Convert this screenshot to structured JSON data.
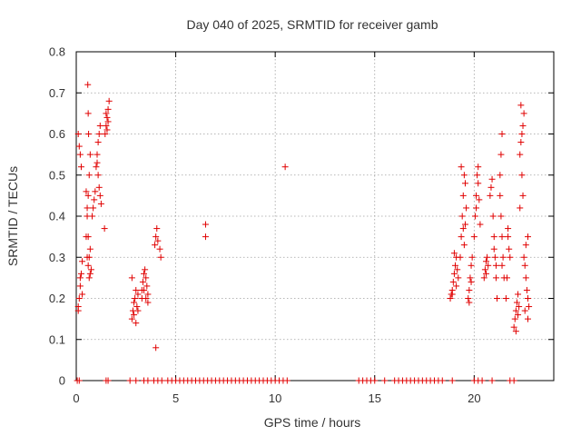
{
  "chart_data": {
    "type": "scatter",
    "title": "Day 040 of 2025, SRMTID for receiver gamb",
    "xlabel": "GPS time / hours",
    "ylabel": "SRMTID / TECUs",
    "xlim": [
      0,
      24
    ],
    "ylim": [
      0,
      0.8
    ],
    "xticks": [
      0,
      5,
      10,
      15,
      20
    ],
    "yticks": [
      0,
      0.1,
      0.2,
      0.3,
      0.4,
      0.5,
      0.6,
      0.7,
      0.8
    ],
    "xtick_labels": [
      "0",
      "5",
      "10",
      "15",
      "20"
    ],
    "ytick_labels": [
      "0",
      "0.1",
      "0.2",
      "0.3",
      "0.4",
      "0.5",
      "0.6",
      "0.7",
      "0.8"
    ],
    "grid": true,
    "marker": "+",
    "color": "#e00000",
    "series": [
      {
        "name": "SRMTID",
        "points": [
          [
            0.1,
            0.18
          ],
          [
            0.15,
            0.2
          ],
          [
            0.2,
            0.23
          ],
          [
            0.25,
            0.26
          ],
          [
            0.3,
            0.29
          ],
          [
            0.1,
            0.6
          ],
          [
            0.15,
            0.57
          ],
          [
            0.2,
            0.55
          ],
          [
            0.25,
            0.52
          ],
          [
            0.1,
            0.17
          ],
          [
            0.2,
            0.25
          ],
          [
            0.3,
            0.21
          ],
          [
            0.05,
            0.0
          ],
          [
            0.15,
            0.0
          ],
          [
            0.5,
            0.35
          ],
          [
            0.55,
            0.4
          ],
          [
            0.6,
            0.45
          ],
          [
            0.65,
            0.5
          ],
          [
            0.7,
            0.55
          ],
          [
            0.58,
            0.72
          ],
          [
            0.6,
            0.65
          ],
          [
            0.62,
            0.6
          ],
          [
            0.55,
            0.3
          ],
          [
            0.6,
            0.28
          ],
          [
            0.65,
            0.25
          ],
          [
            0.7,
            0.32
          ],
          [
            0.75,
            0.27
          ],
          [
            0.5,
            0.46
          ],
          [
            0.55,
            0.42
          ],
          [
            0.6,
            0.35
          ],
          [
            0.65,
            0.3
          ],
          [
            0.7,
            0.26
          ],
          [
            0.8,
            0.4
          ],
          [
            0.85,
            0.42
          ],
          [
            0.9,
            0.44
          ],
          [
            0.95,
            0.46
          ],
          [
            1.0,
            0.52
          ],
          [
            1.05,
            0.55
          ],
          [
            1.1,
            0.58
          ],
          [
            1.15,
            0.6
          ],
          [
            1.2,
            0.62
          ],
          [
            1.05,
            0.53
          ],
          [
            1.1,
            0.5
          ],
          [
            1.15,
            0.47
          ],
          [
            1.2,
            0.45
          ],
          [
            1.25,
            0.43
          ],
          [
            1.45,
            0.6
          ],
          [
            1.5,
            0.62
          ],
          [
            1.55,
            0.64
          ],
          [
            1.6,
            0.66
          ],
          [
            1.65,
            0.68
          ],
          [
            1.5,
            0.65
          ],
          [
            1.55,
            0.61
          ],
          [
            1.6,
            0.63
          ],
          [
            1.42,
            0.37
          ],
          [
            1.5,
            0.0
          ],
          [
            1.6,
            0.0
          ],
          [
            2.8,
            0.15
          ],
          [
            2.85,
            0.17
          ],
          [
            2.9,
            0.19
          ],
          [
            2.95,
            0.2
          ],
          [
            3.0,
            0.22
          ],
          [
            3.05,
            0.18
          ],
          [
            3.1,
            0.21
          ],
          [
            2.8,
            0.25
          ],
          [
            2.9,
            0.16
          ],
          [
            3.0,
            0.14
          ],
          [
            3.1,
            0.17
          ],
          [
            2.7,
            0.0
          ],
          [
            3.0,
            0.0
          ],
          [
            3.3,
            0.22
          ],
          [
            3.35,
            0.24
          ],
          [
            3.4,
            0.26
          ],
          [
            3.45,
            0.27
          ],
          [
            3.5,
            0.25
          ],
          [
            3.55,
            0.23
          ],
          [
            3.6,
            0.21
          ],
          [
            3.3,
            0.2
          ],
          [
            3.4,
            0.22
          ],
          [
            3.5,
            0.2
          ],
          [
            3.6,
            0.19
          ],
          [
            3.4,
            0.0
          ],
          [
            3.6,
            0.0
          ],
          [
            3.95,
            0.33
          ],
          [
            4.0,
            0.35
          ],
          [
            4.05,
            0.37
          ],
          [
            4.1,
            0.34
          ],
          [
            4.2,
            0.32
          ],
          [
            4.25,
            0.3
          ],
          [
            4.0,
            0.08
          ],
          [
            3.9,
            0.0
          ],
          [
            4.1,
            0.0
          ],
          [
            4.3,
            0.0
          ],
          [
            4.6,
            0.0
          ],
          [
            4.8,
            0.0
          ],
          [
            5.0,
            0.0
          ],
          [
            5.2,
            0.0
          ],
          [
            5.4,
            0.0
          ],
          [
            5.6,
            0.0
          ],
          [
            5.8,
            0.0
          ],
          [
            6.0,
            0.0
          ],
          [
            6.2,
            0.0
          ],
          [
            6.4,
            0.0
          ],
          [
            6.6,
            0.0
          ],
          [
            6.8,
            0.0
          ],
          [
            7.0,
            0.0
          ],
          [
            7.2,
            0.0
          ],
          [
            7.4,
            0.0
          ],
          [
            7.6,
            0.0
          ],
          [
            7.8,
            0.0
          ],
          [
            8.0,
            0.0
          ],
          [
            8.2,
            0.0
          ],
          [
            8.4,
            0.0
          ],
          [
            8.6,
            0.0
          ],
          [
            8.8,
            0.0
          ],
          [
            9.0,
            0.0
          ],
          [
            9.2,
            0.0
          ],
          [
            9.4,
            0.0
          ],
          [
            9.6,
            0.0
          ],
          [
            9.8,
            0.0
          ],
          [
            10.0,
            0.0
          ],
          [
            10.2,
            0.0
          ],
          [
            10.4,
            0.0
          ],
          [
            10.6,
            0.0
          ],
          [
            6.5,
            0.38
          ],
          [
            6.5,
            0.35
          ],
          [
            10.5,
            0.52
          ],
          [
            14.2,
            0.0
          ],
          [
            14.4,
            0.0
          ],
          [
            14.6,
            0.0
          ],
          [
            14.8,
            0.0
          ],
          [
            15.0,
            0.0
          ],
          [
            15.5,
            0.0
          ],
          [
            16.0,
            0.0
          ],
          [
            16.2,
            0.0
          ],
          [
            16.4,
            0.0
          ],
          [
            16.6,
            0.0
          ],
          [
            16.8,
            0.0
          ],
          [
            17.0,
            0.0
          ],
          [
            17.2,
            0.0
          ],
          [
            17.4,
            0.0
          ],
          [
            17.6,
            0.0
          ],
          [
            17.8,
            0.0
          ],
          [
            18.0,
            0.0
          ],
          [
            18.2,
            0.0
          ],
          [
            18.4,
            0.0
          ],
          [
            18.8,
            0.2
          ],
          [
            18.85,
            0.21
          ],
          [
            18.9,
            0.22
          ],
          [
            18.95,
            0.24
          ],
          [
            19.0,
            0.26
          ],
          [
            19.05,
            0.28
          ],
          [
            19.1,
            0.3
          ],
          [
            19.15,
            0.27
          ],
          [
            19.2,
            0.25
          ],
          [
            19.0,
            0.31
          ],
          [
            19.1,
            0.23
          ],
          [
            18.9,
            0.21
          ],
          [
            18.9,
            0.0
          ],
          [
            19.3,
            0.3
          ],
          [
            19.35,
            0.35
          ],
          [
            19.4,
            0.4
          ],
          [
            19.45,
            0.45
          ],
          [
            19.5,
            0.5
          ],
          [
            19.55,
            0.48
          ],
          [
            19.6,
            0.42
          ],
          [
            19.35,
            0.52
          ],
          [
            19.45,
            0.37
          ],
          [
            19.5,
            0.33
          ],
          [
            19.55,
            0.38
          ],
          [
            19.7,
            0.2
          ],
          [
            19.75,
            0.22
          ],
          [
            19.8,
            0.25
          ],
          [
            19.85,
            0.28
          ],
          [
            19.9,
            0.3
          ],
          [
            19.75,
            0.19
          ],
          [
            19.85,
            0.24
          ],
          [
            20.0,
            0.35
          ],
          [
            20.05,
            0.4
          ],
          [
            20.1,
            0.45
          ],
          [
            20.15,
            0.5
          ],
          [
            20.2,
            0.48
          ],
          [
            20.25,
            0.44
          ],
          [
            20.3,
            0.38
          ],
          [
            20.1,
            0.42
          ],
          [
            20.2,
            0.52
          ],
          [
            20.0,
            0.0
          ],
          [
            20.2,
            0.0
          ],
          [
            20.4,
            0.0
          ],
          [
            20.5,
            0.25
          ],
          [
            20.55,
            0.27
          ],
          [
            20.6,
            0.29
          ],
          [
            20.65,
            0.3
          ],
          [
            20.7,
            0.28
          ],
          [
            20.6,
            0.26
          ],
          [
            20.8,
            0.45
          ],
          [
            20.85,
            0.47
          ],
          [
            20.9,
            0.49
          ],
          [
            20.95,
            0.4
          ],
          [
            21.0,
            0.35
          ],
          [
            21.05,
            0.3
          ],
          [
            21.1,
            0.25
          ],
          [
            21.15,
            0.2
          ],
          [
            21.0,
            0.32
          ],
          [
            21.1,
            0.28
          ],
          [
            20.9,
            0.0
          ],
          [
            21.3,
            0.5
          ],
          [
            21.35,
            0.55
          ],
          [
            21.4,
            0.6
          ],
          [
            21.3,
            0.45
          ],
          [
            21.35,
            0.4
          ],
          [
            21.4,
            0.35
          ],
          [
            21.45,
            0.3
          ],
          [
            21.5,
            0.25
          ],
          [
            21.4,
            0.28
          ],
          [
            21.6,
            0.2
          ],
          [
            21.65,
            0.25
          ],
          [
            21.7,
            0.35
          ],
          [
            21.75,
            0.32
          ],
          [
            21.8,
            0.3
          ],
          [
            21.7,
            0.37
          ],
          [
            21.8,
            0.0
          ],
          [
            22.0,
            0.0
          ],
          [
            22.0,
            0.13
          ],
          [
            22.05,
            0.15
          ],
          [
            22.1,
            0.17
          ],
          [
            22.15,
            0.19
          ],
          [
            22.2,
            0.21
          ],
          [
            22.25,
            0.18
          ],
          [
            22.1,
            0.12
          ],
          [
            22.2,
            0.16
          ],
          [
            22.3,
            0.55
          ],
          [
            22.35,
            0.58
          ],
          [
            22.4,
            0.6
          ],
          [
            22.45,
            0.62
          ],
          [
            22.5,
            0.65
          ],
          [
            22.35,
            0.67
          ],
          [
            22.4,
            0.5
          ],
          [
            22.45,
            0.45
          ],
          [
            22.3,
            0.42
          ],
          [
            22.5,
            0.3
          ],
          [
            22.55,
            0.28
          ],
          [
            22.6,
            0.25
          ],
          [
            22.65,
            0.22
          ],
          [
            22.7,
            0.2
          ],
          [
            22.75,
            0.18
          ],
          [
            22.7,
            0.35
          ],
          [
            22.6,
            0.33
          ],
          [
            22.55,
            0.17
          ],
          [
            22.7,
            0.15
          ]
        ]
      }
    ]
  }
}
